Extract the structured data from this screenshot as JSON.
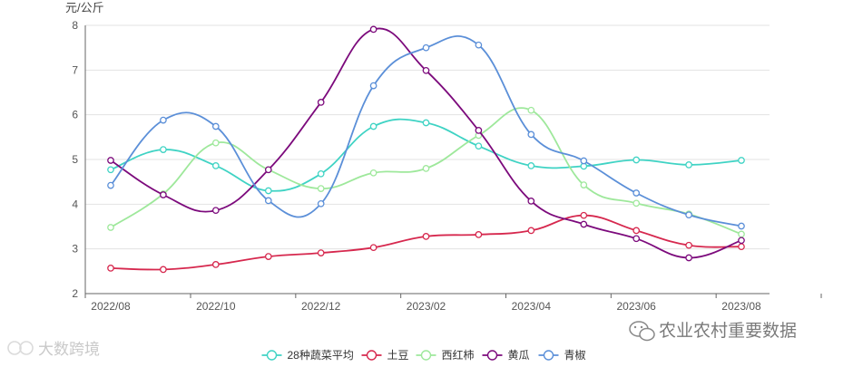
{
  "watermarks": {
    "left": "大数跨境",
    "right": "农业农村重要数据"
  },
  "chart_data": {
    "type": "line",
    "smooth": true,
    "y_unit": "元/公斤",
    "ylim": [
      2,
      8
    ],
    "y_ticks": [
      2,
      3,
      4,
      5,
      6,
      7,
      8
    ],
    "x_range": [
      "2022-08",
      "2023-08"
    ],
    "x_ticks": [
      "2022/08",
      "2022/10",
      "2022/12",
      "2023/02",
      "2023/04",
      "2023/06",
      "2023/08"
    ],
    "grid": "horizontal",
    "legend_position": "bottom",
    "x": [
      "2022-08",
      "2022-09",
      "2022-10",
      "2022-11",
      "2022-12",
      "2023-01",
      "2023-02",
      "2023-03",
      "2023-04",
      "2023-05",
      "2023-06",
      "2023-07",
      "2023-08"
    ],
    "series": [
      {
        "name": "28种蔬菜平均",
        "color": "#3fd3c4",
        "values": [
          4.77,
          5.22,
          4.86,
          4.3,
          4.68,
          5.74,
          5.82,
          5.3,
          4.86,
          4.85,
          4.99,
          4.88,
          4.98
        ]
      },
      {
        "name": "土豆",
        "color": "#d6284e",
        "values": [
          2.57,
          2.54,
          2.65,
          2.83,
          2.91,
          3.03,
          3.28,
          3.32,
          3.41,
          3.75,
          3.41,
          3.08,
          3.05
        ]
      },
      {
        "name": "西红柿",
        "color": "#9ee89b",
        "values": [
          3.48,
          4.23,
          5.37,
          4.77,
          4.35,
          4.7,
          4.8,
          5.54,
          6.1,
          4.43,
          4.02,
          3.78,
          3.33
        ]
      },
      {
        "name": "黄瓜",
        "color": "#7c0a7c",
        "values": [
          4.98,
          4.21,
          3.86,
          4.77,
          6.28,
          7.91,
          6.99,
          5.65,
          4.07,
          3.55,
          3.23,
          2.8,
          3.19
        ]
      },
      {
        "name": "青椒",
        "color": "#5b8fd8",
        "values": [
          4.42,
          5.88,
          5.74,
          4.08,
          4.01,
          6.65,
          7.5,
          7.56,
          5.56,
          4.97,
          4.25,
          3.76,
          3.51
        ]
      }
    ]
  }
}
